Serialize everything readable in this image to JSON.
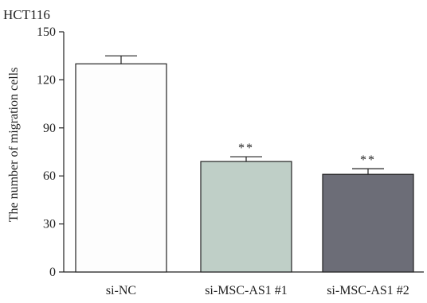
{
  "chart_data": {
    "type": "bar",
    "title": "HCT116",
    "xlabel": "",
    "ylabel": "The number of migration cells",
    "ylim": [
      0,
      150
    ],
    "yticks": [
      0,
      30,
      60,
      90,
      120,
      150
    ],
    "categories": [
      "si-NC",
      "si-MSC-AS1 #1",
      "si-MSC-AS1 #2"
    ],
    "values": [
      130,
      69,
      61
    ],
    "errors": [
      5,
      3,
      3.5
    ],
    "significance": [
      "",
      "**",
      "**"
    ],
    "colors": [
      "#fdfdfd",
      "#bfcfc7",
      "#6c6d77"
    ],
    "grid": false
  }
}
